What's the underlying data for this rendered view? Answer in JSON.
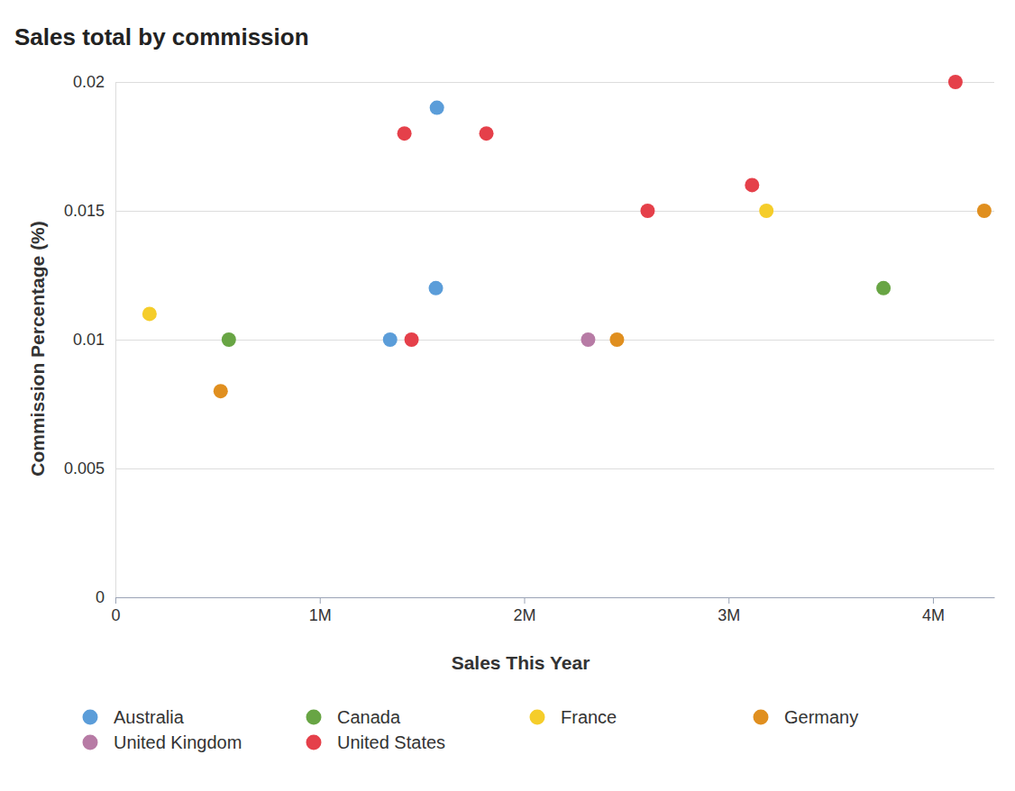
{
  "chart_data": {
    "type": "scatter",
    "title": "Sales total by commission",
    "x_label": "Sales This Year",
    "y_label": "Commission Percentage (%)",
    "xlim": [
      0,
      4300000
    ],
    "xticks": [
      0,
      {
        "value": 1000000,
        "label": "1M"
      },
      {
        "value": 2000000,
        "label": "2M"
      },
      {
        "value": 3000000,
        "label": "3M"
      },
      {
        "value": 4000000,
        "label": "4M"
      }
    ],
    "ylim": [
      0,
      0.02
    ],
    "yticks": [
      0,
      0.005,
      0.01,
      0.015,
      0.02
    ],
    "grid": true,
    "legend": "bottom",
    "marker": "circle",
    "series": [
      {
        "name": "Australia",
        "color": "#5b9dd9",
        "x": [
          1573000,
          1568000,
          1344000
        ],
        "values": [
          0.019,
          0.012,
          0.01
        ]
      },
      {
        "name": "Canada",
        "color": "#68a544",
        "x": [
          555000,
          3758000
        ],
        "values": [
          0.01,
          0.012
        ]
      },
      {
        "name": "France",
        "color": "#f5cd2a",
        "x": [
          167000,
          3185000
        ],
        "values": [
          0.011,
          0.015
        ]
      },
      {
        "name": "Germany",
        "color": "#e08f1f",
        "x": [
          515000,
          2454000,
          4251000
        ],
        "values": [
          0.008,
          0.01,
          0.015
        ]
      },
      {
        "name": "United Kingdom",
        "color": "#b77ba5",
        "x": [
          2313000
        ],
        "values": [
          0.01
        ]
      },
      {
        "name": "United States",
        "color": "#e5404a",
        "x": [
          1414000,
          1815000,
          1449000,
          2604000,
          3115000,
          4110000
        ],
        "values": [
          0.018,
          0.018,
          0.01,
          0.015,
          0.016,
          0.02
        ]
      }
    ]
  }
}
